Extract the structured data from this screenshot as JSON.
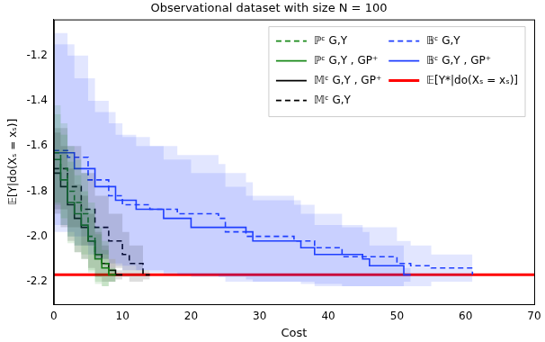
{
  "chart_data": {
    "type": "line",
    "title": "Observational dataset with size N = 100",
    "x_label": "Cost",
    "y_label": "𝔼[Y|do(Xₛ = xₛ)]",
    "xlim": [
      0,
      70
    ],
    "xticks": [
      0,
      10,
      20,
      30,
      40,
      50,
      60,
      70
    ],
    "ylim": [
      -2.3,
      -1.04
    ],
    "yticks": [
      {
        "value": -2.2,
        "label": "-2.2"
      },
      {
        "value": -2.0,
        "label": "-2.0"
      },
      {
        "value": -1.8,
        "label": "-1.8"
      },
      {
        "value": -1.6,
        "label": "-1.6"
      },
      {
        "value": -1.4,
        "label": "-1.4"
      },
      {
        "value": -1.2,
        "label": "-1.2"
      }
    ],
    "grid": false,
    "legend": "upper right",
    "series": [
      {
        "name": "ℙᶜ G,Y",
        "color": "#1a8a1a",
        "line_style": "dashed",
        "x": [
          0,
          1,
          2,
          3,
          4,
          5,
          6,
          7,
          8,
          9
        ],
        "values": [
          -1.63,
          -1.7,
          -1.8,
          -1.85,
          -1.9,
          -2.0,
          -2.08,
          -2.12,
          -2.17,
          -2.17
        ],
        "lower": [
          -1.85,
          -1.92,
          -2.0,
          -2.04,
          -2.08,
          -2.15,
          -2.2,
          -2.22,
          -2.2,
          -2.19
        ],
        "upper": [
          -1.42,
          -1.5,
          -1.6,
          -1.66,
          -1.72,
          -1.85,
          -1.96,
          -2.02,
          -2.14,
          -2.15
        ]
      },
      {
        "name": "ℙᶜ G,Y , GP⁺",
        "color": "#1a8a1a",
        "line_style": "solid",
        "x": [
          0,
          1,
          2,
          3,
          4,
          5,
          6,
          7,
          8,
          9
        ],
        "values": [
          -1.66,
          -1.75,
          -1.85,
          -1.9,
          -1.95,
          -2.02,
          -2.1,
          -2.14,
          -2.17,
          -2.17
        ],
        "lower": [
          -1.86,
          -1.95,
          -2.03,
          -2.07,
          -2.1,
          -2.16,
          -2.21,
          -2.22,
          -2.2,
          -2.19
        ],
        "upper": [
          -1.46,
          -1.55,
          -1.67,
          -1.73,
          -1.8,
          -1.88,
          -1.99,
          -2.06,
          -2.14,
          -2.15
        ]
      },
      {
        "name": "𝕄ᶜ G,Y , GP⁺",
        "color": "#000000",
        "line_style": "solid",
        "x": [
          0,
          1,
          2,
          3,
          4,
          5,
          6,
          7,
          8,
          9,
          10
        ],
        "values": [
          -1.72,
          -1.78,
          -1.86,
          -1.92,
          -1.96,
          -2.02,
          -2.08,
          -2.12,
          -2.15,
          -2.17,
          -2.17
        ],
        "lower": [
          -1.9,
          -1.96,
          -2.02,
          -2.07,
          -2.1,
          -2.14,
          -2.18,
          -2.2,
          -2.2,
          -2.19,
          -2.19
        ],
        "upper": [
          -1.54,
          -1.6,
          -1.7,
          -1.77,
          -1.82,
          -1.9,
          -1.98,
          -2.04,
          -2.1,
          -2.15,
          -2.15
        ]
      },
      {
        "name": "𝕄ᶜ G,Y",
        "color": "#000000",
        "line_style": "dashed",
        "x": [
          0,
          2,
          4,
          6,
          8,
          10,
          11,
          13,
          14
        ],
        "values": [
          -1.7,
          -1.78,
          -1.88,
          -1.96,
          -2.02,
          -2.08,
          -2.12,
          -2.17,
          -2.17
        ],
        "lower": [
          -1.88,
          -1.96,
          -2.04,
          -2.1,
          -2.14,
          -2.18,
          -2.2,
          -2.19,
          -2.19
        ],
        "upper": [
          -1.52,
          -1.6,
          -1.72,
          -1.82,
          -1.9,
          -1.98,
          -2.04,
          -2.15,
          -2.15
        ]
      },
      {
        "name": "𝔹ᶜ G,Y",
        "color": "#1f3fff",
        "line_style": "dashed",
        "x": [
          0,
          2,
          5,
          8,
          10,
          14,
          18,
          24,
          25,
          28,
          35,
          38,
          42,
          50,
          52,
          55,
          61
        ],
        "values": [
          -1.62,
          -1.65,
          -1.75,
          -1.82,
          -1.86,
          -1.88,
          -1.9,
          -1.92,
          -1.98,
          -2.0,
          -2.02,
          -2.05,
          -2.09,
          -2.12,
          -2.13,
          -2.14,
          -2.17
        ],
        "lower": [
          -1.95,
          -2.0,
          -2.08,
          -2.12,
          -2.15,
          -2.16,
          -2.17,
          -2.18,
          -2.2,
          -2.2,
          -2.2,
          -2.21,
          -2.22,
          -2.22,
          -2.22,
          -2.2,
          -2.18
        ],
        "upper": [
          -1.1,
          -1.2,
          -1.4,
          -1.5,
          -1.56,
          -1.6,
          -1.64,
          -1.68,
          -1.78,
          -1.82,
          -1.86,
          -1.9,
          -1.96,
          -2.02,
          -2.04,
          -2.08,
          -2.16
        ]
      },
      {
        "name": "𝔹ᶜ G,Y , GP⁺",
        "color": "#1f3fff",
        "line_style": "solid",
        "x": [
          0,
          3,
          6,
          9,
          12,
          16,
          20,
          28,
          29,
          36,
          38,
          45,
          46,
          51,
          52
        ],
        "values": [
          -1.63,
          -1.7,
          -1.78,
          -1.84,
          -1.88,
          -1.92,
          -1.96,
          -1.98,
          -2.02,
          -2.05,
          -2.08,
          -2.1,
          -2.13,
          -2.17,
          -2.17
        ],
        "lower": [
          -1.98,
          -2.04,
          -2.1,
          -2.13,
          -2.15,
          -2.17,
          -2.18,
          -2.19,
          -2.2,
          -2.21,
          -2.22,
          -2.22,
          -2.22,
          -2.2,
          -2.19
        ],
        "upper": [
          -1.15,
          -1.3,
          -1.45,
          -1.55,
          -1.6,
          -1.66,
          -1.72,
          -1.76,
          -1.84,
          -1.9,
          -1.95,
          -1.98,
          -2.04,
          -2.14,
          -2.15
        ]
      },
      {
        "name": "𝔼[Y*|do(Xₛ = xₛ)]",
        "color": "#ff0000",
        "line_style": "solid",
        "x": [
          0,
          70
        ],
        "values": [
          -2.17,
          -2.17
        ]
      }
    ]
  }
}
